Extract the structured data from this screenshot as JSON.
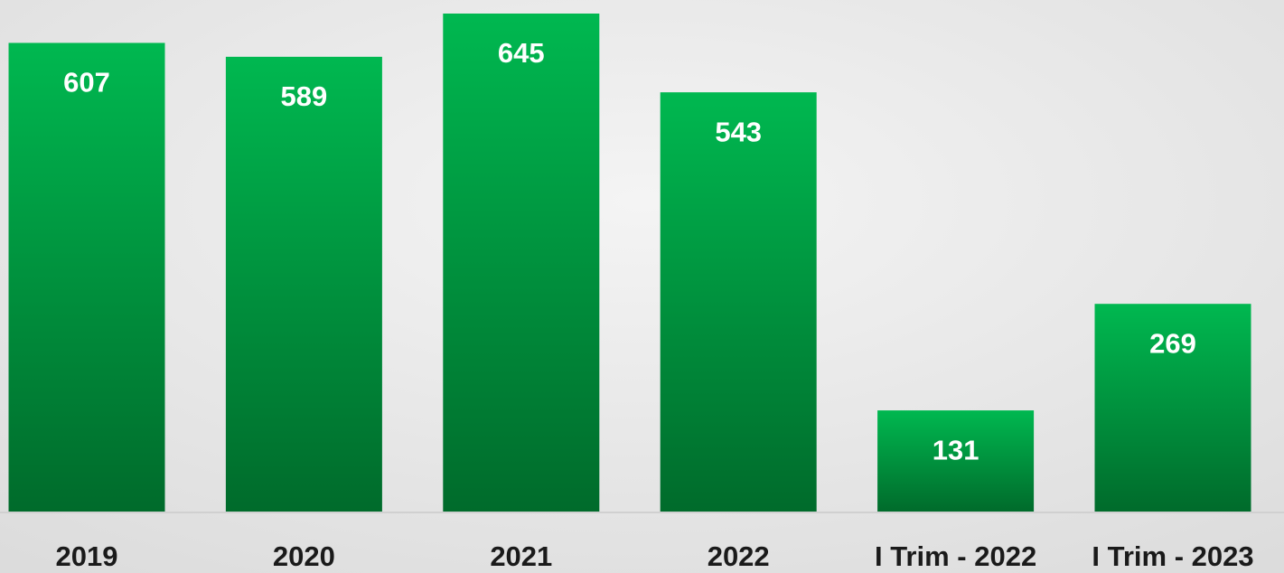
{
  "chart_data": {
    "type": "bar",
    "categories": [
      "2019",
      "2020",
      "2021",
      "2022",
      "I Trim - 2022",
      "I Trim - 2023"
    ],
    "values": [
      607,
      589,
      645,
      543,
      131,
      269
    ],
    "color": "#00b850"
  }
}
